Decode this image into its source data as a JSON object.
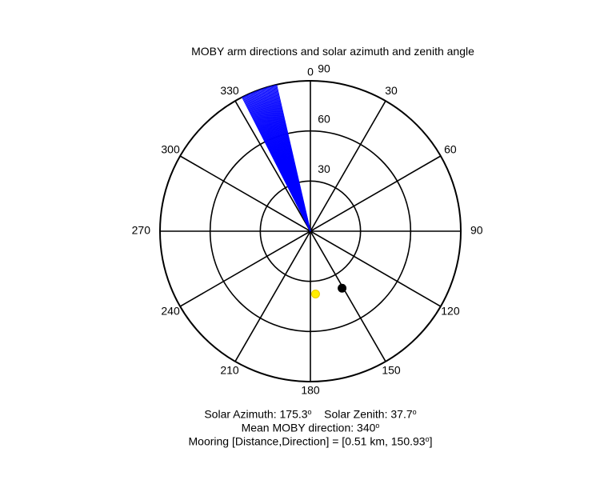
{
  "chart_data": {
    "type": "polar",
    "title": "MOBY arm directions and solar azimuth and zenith angle",
    "angular_axis": {
      "zero": "top",
      "direction": "clockwise",
      "tick_labels": [
        "0",
        "30",
        "60",
        "90",
        "120",
        "150",
        "180",
        "210",
        "240",
        "270",
        "300",
        "330"
      ],
      "tick_angles": [
        0,
        30,
        60,
        90,
        120,
        150,
        180,
        210,
        240,
        270,
        300,
        330
      ]
    },
    "radial_axis": {
      "range": [
        0,
        90
      ],
      "ticks": [
        30,
        60,
        90
      ],
      "tick_labels": [
        "30",
        "60",
        "90"
      ]
    },
    "grid": true,
    "moby_arm_directions": {
      "color": "#0000ff",
      "min_direction": 333,
      "max_direction": 347,
      "count": 40
    },
    "solar_position": {
      "azimuth": 175.3,
      "zenith": 37.7,
      "color": "#ffee00"
    },
    "mooring_marker": {
      "direction": 150.93,
      "radius": 39,
      "color": "#000000"
    }
  },
  "caption": {
    "solar_azimuth_label": "Solar Azimuth: 175.3",
    "solar_zenith_label": "Solar Zenith: 37.7",
    "degree_symbol": "o",
    "mean_direction_label": "Mean MOBY direction: 340",
    "mooring_label": "Mooring [Distance,Direction] = [0.51 km, 150.93",
    "mooring_close": "]"
  }
}
